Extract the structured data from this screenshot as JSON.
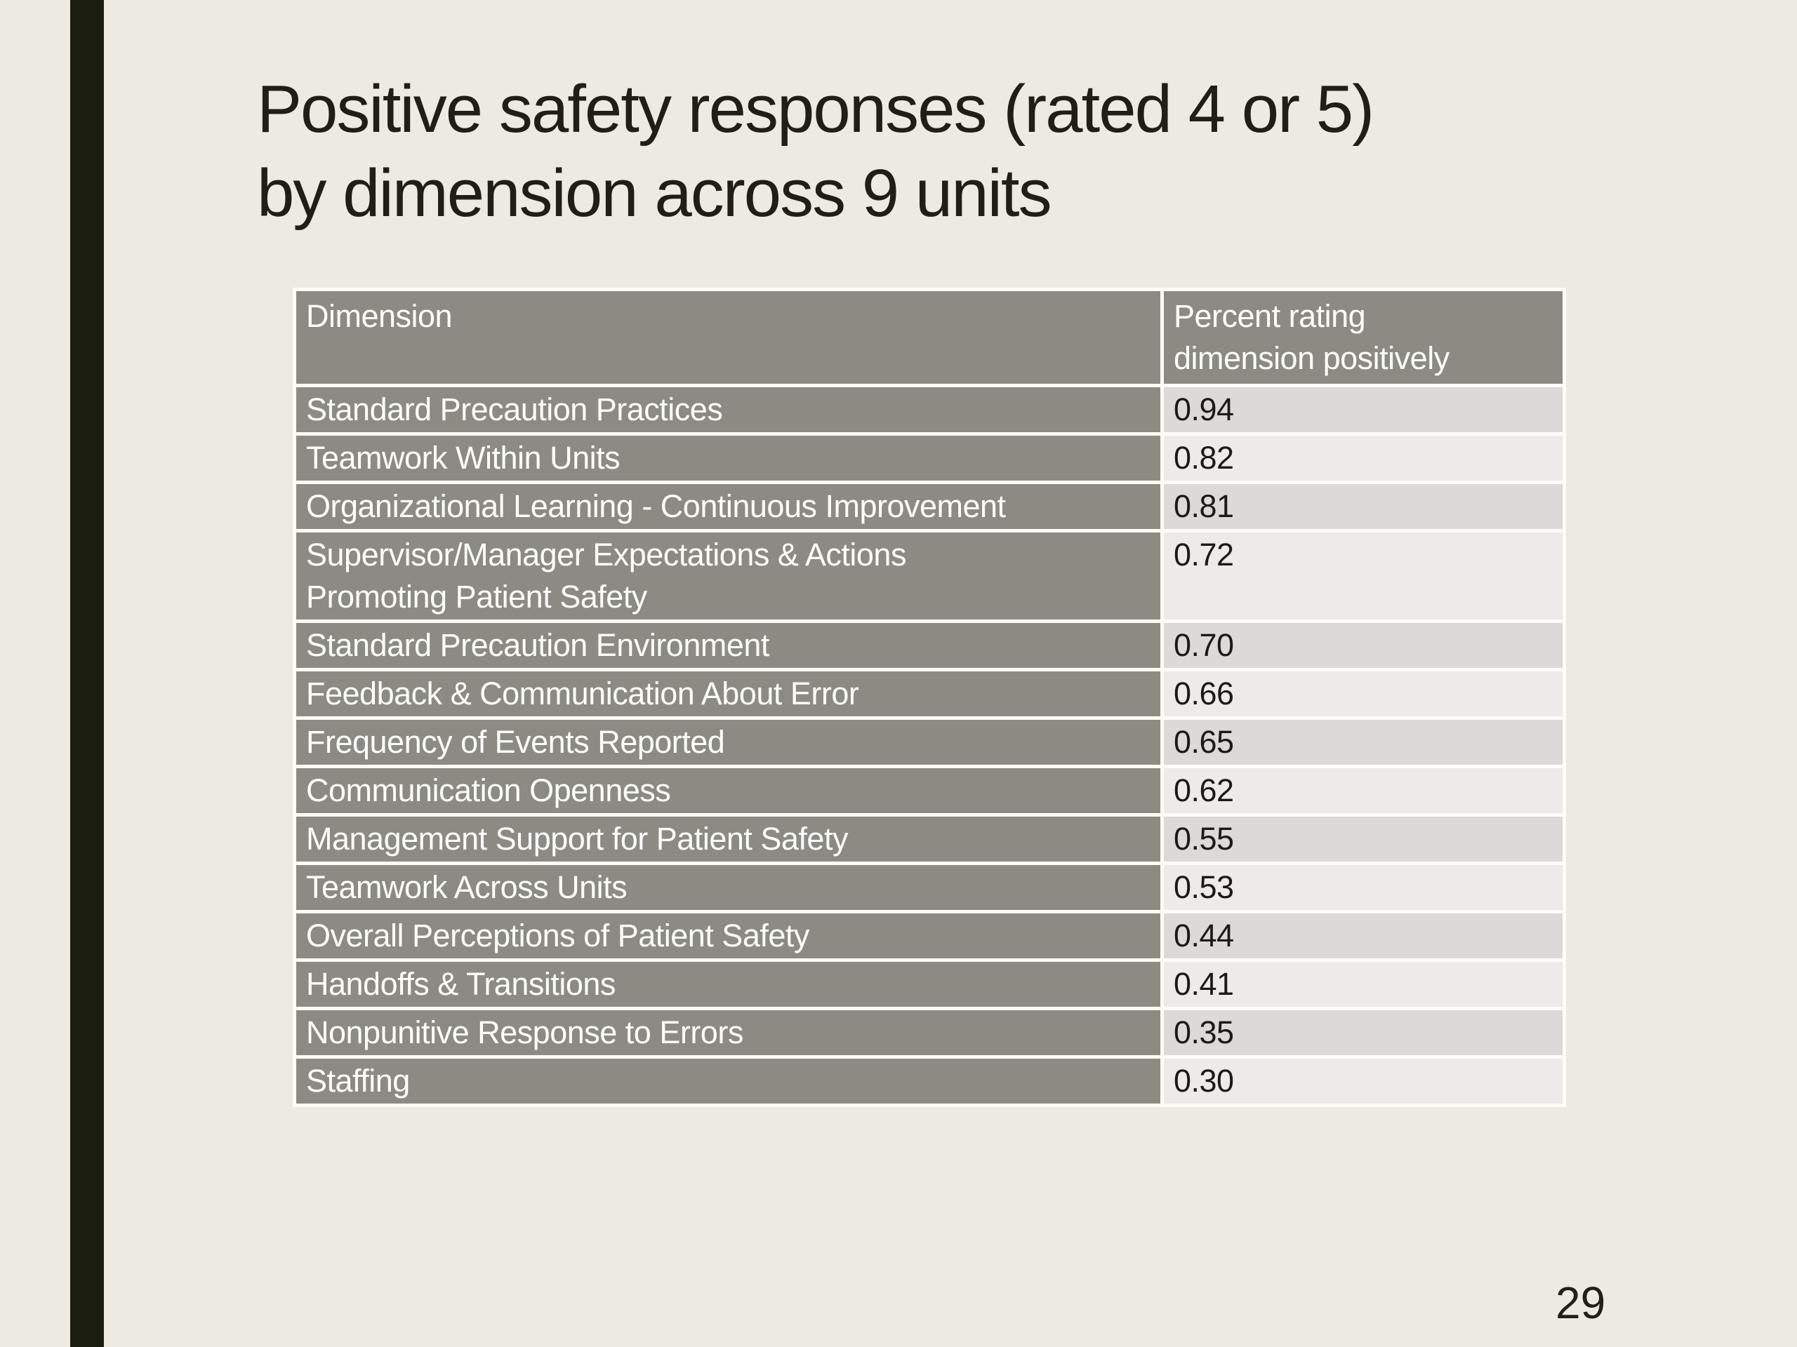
{
  "slide": {
    "title": "Positive safety responses (rated 4 or 5)\nby dimension across 9 units",
    "page_number": "29"
  },
  "table": {
    "columns": [
      "Dimension",
      "Percent rating\ndimension positively"
    ],
    "rows": [
      {
        "dimension": "Standard Precaution Practices",
        "value": "0.94"
      },
      {
        "dimension": "Teamwork Within Units",
        "value": "0.82"
      },
      {
        "dimension": "Organizational Learning - Continuous Improvement",
        "value": "0.81"
      },
      {
        "dimension": "Supervisor/Manager Expectations & Actions\nPromoting Patient Safety",
        "value": "0.72"
      },
      {
        "dimension": "Standard Precaution Environment",
        "value": "0.70"
      },
      {
        "dimension": "Feedback & Communication About Error",
        "value": "0.66"
      },
      {
        "dimension": "Frequency of Events Reported",
        "value": "0.65"
      },
      {
        "dimension": "Communication Openness",
        "value": "0.62"
      },
      {
        "dimension": "Management Support for Patient Safety",
        "value": "0.55"
      },
      {
        "dimension": "Teamwork Across Units",
        "value": "0.53"
      },
      {
        "dimension": "Overall Perceptions of Patient Safety",
        "value": "0.44"
      },
      {
        "dimension": "Handoffs & Transitions",
        "value": "0.41"
      },
      {
        "dimension": "Nonpunitive Response to Errors",
        "value": "0.35"
      },
      {
        "dimension": "Staffing",
        "value": "0.30"
      }
    ]
  },
  "colors": {
    "background": "#edeae1",
    "accent_bar": "#1b1d10",
    "title_text": "#1f1f18",
    "cell_gray": "#8b8b83",
    "band_odd": "#dbdad6",
    "band_even": "#ecebe7",
    "separator_white": "#fcfbf6",
    "value_text": "#1b1b16"
  }
}
